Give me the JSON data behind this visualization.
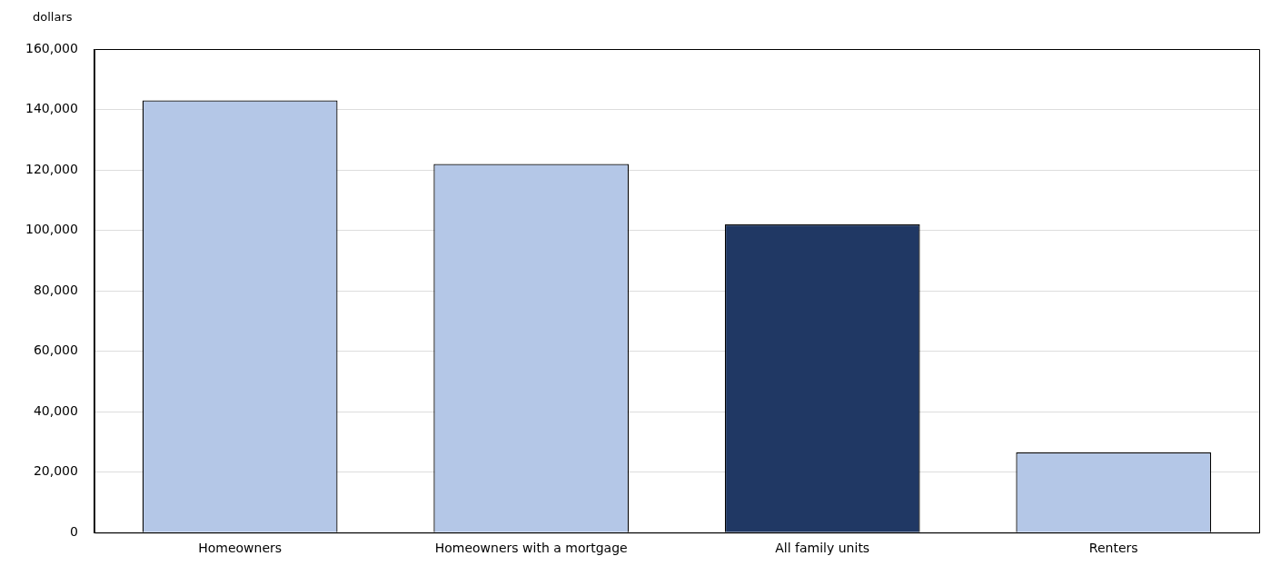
{
  "chart_data": {
    "type": "bar",
    "ylabel": "dollars",
    "categories": [
      "Homeowners",
      "Homeowners with a mortgage",
      "All family units",
      "Renters"
    ],
    "values": [
      143000,
      122000,
      102000,
      26500
    ],
    "colors": [
      "#b4c7e7",
      "#b4c7e7",
      "#203864",
      "#b4c7e7"
    ],
    "ylim": [
      0,
      160000
    ],
    "yticks": [
      0,
      {
        "value": 20000,
        "label": "20,000"
      },
      {
        "value": 40000,
        "label": "40,000"
      },
      {
        "value": 60000,
        "label": "60,000"
      },
      {
        "value": 80000,
        "label": "80,000"
      },
      {
        "value": 100000,
        "label": "100,000"
      },
      {
        "value": 120000,
        "label": "120,000"
      },
      {
        "value": 140000,
        "label": "140,000"
      },
      {
        "value": 160000,
        "label": "160,000"
      }
    ],
    "grid": "y"
  }
}
